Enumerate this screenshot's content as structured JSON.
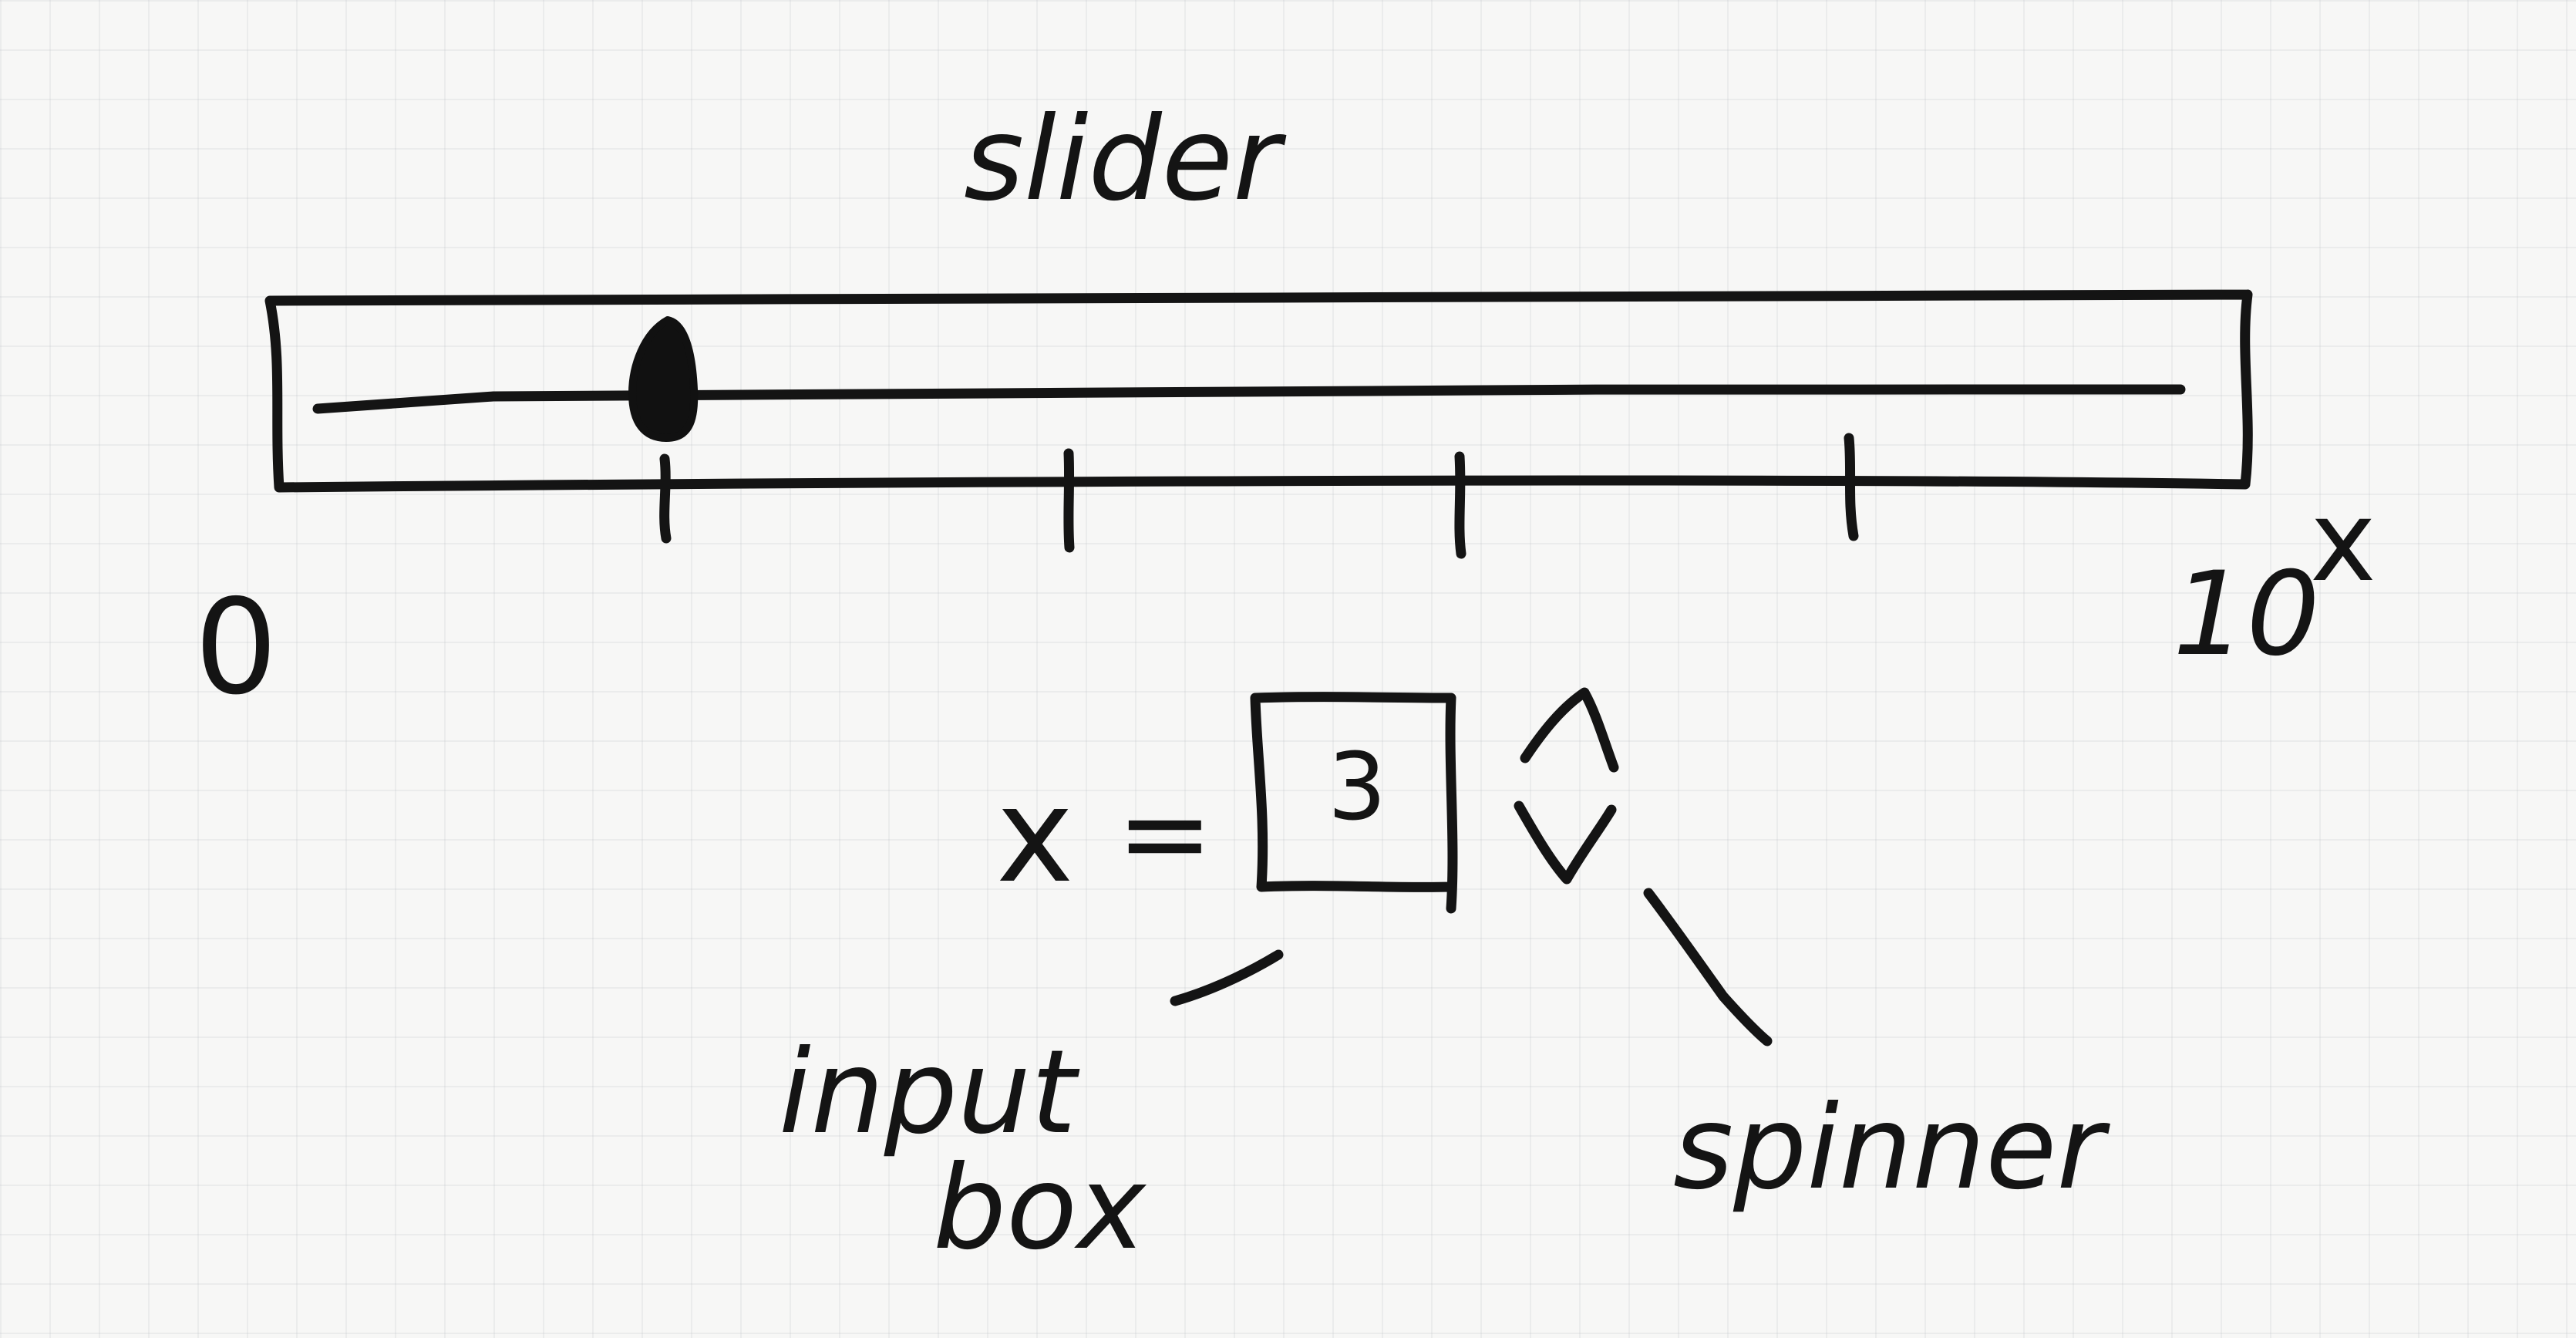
{
  "title": "slider",
  "slider": {
    "min_label": "0",
    "max_label": "10",
    "variable_label": "x",
    "value": 1,
    "tick_count": 4
  },
  "equation": {
    "variable": "x",
    "equals": "=",
    "input_value": "3"
  },
  "annotations": {
    "input_box": [
      "input",
      "box"
    ],
    "spinner": "spinner"
  }
}
